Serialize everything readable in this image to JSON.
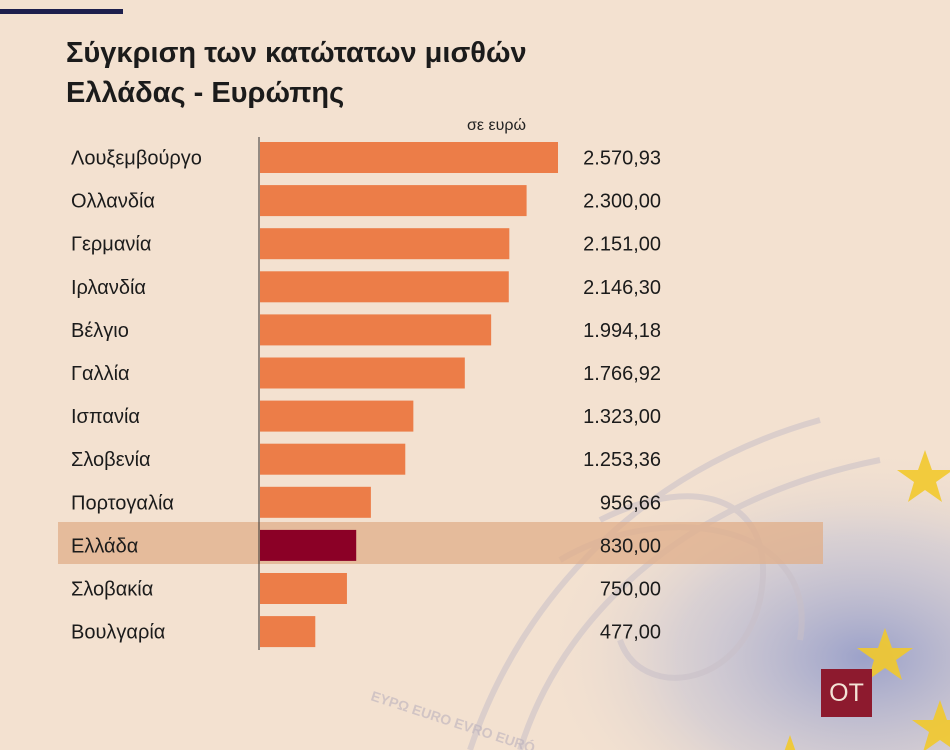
{
  "header": {
    "title_line1": "Σύγκριση των κατώτατων μισθών",
    "title_line2": "Ελλάδας - Ευρώπης",
    "unit_note": "σε ευρώ"
  },
  "logo": {
    "text": "ΟΤ"
  },
  "colors": {
    "bar": "#ec7d48",
    "highlight_bar": "#8b0026",
    "highlight_row": "#e0af8c",
    "logo_bg": "#8d1a2e"
  },
  "chart_data": {
    "type": "bar",
    "orientation": "horizontal",
    "title": "Σύγκριση των κατώτατων μισθών Ελλάδας - Ευρώπης",
    "unit": "σε ευρώ",
    "categories": [
      "Λουξεμβούργο",
      "Ολλανδία",
      "Γερμανία",
      "Ιρλανδία",
      "Βέλγιο",
      "Γαλλία",
      "Ισπανία",
      "Σλοβενία",
      "Πορτογαλία",
      "Ελλάδα",
      "Σλοβακία",
      "Βουλγαρία"
    ],
    "values": [
      2570.93,
      2300.0,
      2151.0,
      2146.3,
      1994.18,
      1766.92,
      1323.0,
      1253.36,
      956.66,
      830.0,
      750.0,
      477.0
    ],
    "value_labels": [
      "2.570,93",
      "2.300,00",
      "2.151,00",
      "2.146,30",
      "1.994,18",
      "1.766,92",
      "1.323,00",
      "1.253,36",
      "956,66",
      "830,00",
      "750,00",
      "477,00"
    ],
    "highlight": "Ελλάδα",
    "xlim": [
      0,
      2570.93
    ]
  }
}
